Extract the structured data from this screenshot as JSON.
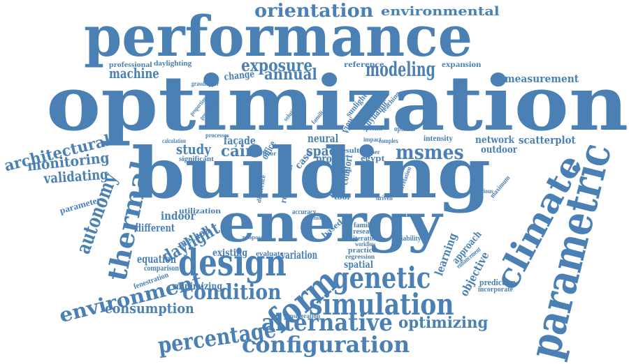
{
  "color": "#4a80b4",
  "words": {
    "optimization": "optimization",
    "building": "building",
    "performance": "performance",
    "energy": "energy",
    "parametric": "parametric",
    "design": "design",
    "climate": "climate",
    "form": "form",
    "simulation": "simulation",
    "genetic": "genetic",
    "configuration": "configuration",
    "alternative": "alternative",
    "condition": "condition",
    "percentage": "percentage",
    "thermal": "thermal",
    "environment": "environment",
    "optimizing": "optimizing",
    "orientation": "orientation",
    "environmental": "environmental",
    "modeling": "modeling",
    "exposure": "exposure",
    "annual": "annual",
    "machine": "machine",
    "architectural": "architectural",
    "monitoring": "monitoring",
    "validating": "validating",
    "autonomy": "autonomy",
    "daylight": "daylight",
    "consumption": "consumption",
    "msmes": "msmes",
    "study": "study",
    "cairo": "cairo",
    "space": "space",
    "neural": "neural",
    "network": "network",
    "outdoor": "outdoor",
    "scatterplot": "scatterplot",
    "measurement": "measurement",
    "expansion": "expansion",
    "reference": "reference",
    "professional": "professional",
    "daylighting": "daylighting",
    "grasshopper": "grasshopper",
    "change": "change",
    "indoor": "indoor",
    "different": "different",
    "method": "method",
    "equation": "equation",
    "comparison": "comparison",
    "fenestration": "fenestration",
    "minimizing": "minimizing",
    "existing": "existing",
    "variation": "variation",
    "evaluate": "evaluate",
    "based": "based",
    "spatial": "spatial",
    "regression": "regression",
    "practice": "practice",
    "iteration": "iteration",
    "workflow": "workflow",
    "research": "research",
    "family": "family",
    "variability": "variability",
    "learning": "learning",
    "approach": "approach",
    "objective": "objective",
    "prediction": "prediction",
    "incorporate": "incorporate",
    "enhancement": "enhancement",
    "intensity": "intensity",
    "facade": "façade",
    "view": "view",
    "sunlight": "sunlight",
    "dynamic": "dynamic",
    "case": "case",
    "residential": "residential",
    "office": "office",
    "proc": "proc",
    "egypt": "egypt",
    "result": "result",
    "comfort": "comfort",
    "poor": "poor",
    "tool": "tool",
    "model": "model",
    "cities": "cities",
    "utilization": "utilization",
    "parameter": "parameter",
    "calculation": "calculation",
    "significant": "significant",
    "processes": "processes",
    "proportion": "proportion",
    "generation": "generation",
    "propose": "propose",
    "consideration": "consideration",
    "correlation": "correlation",
    "previous": "previous",
    "maximum": "maximum",
    "optimal": "optimal",
    "teaching": "teaching",
    "accuracy": "accuracy",
    "driven": "driven",
    "impact": "impact",
    "studies": "studies",
    "paper": "paper",
    "specific": "specific",
    "familiar": "familiar",
    "solution": "solution",
    "floor": "floor",
    "complex": "complex",
    "difference": "difference"
  }
}
